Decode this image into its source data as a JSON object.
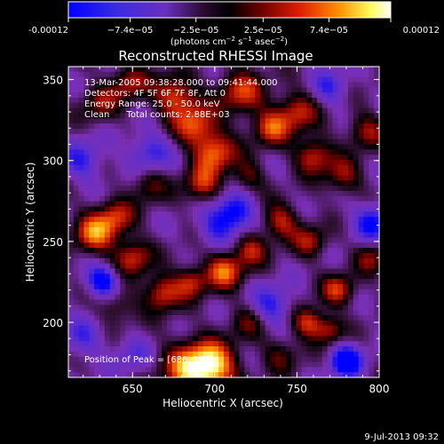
{
  "colorbar": {
    "tick_labels": [
      "-0.00012",
      "−7.4e−05",
      "−2.5e−05",
      "2.5e−05",
      "7.4e−05",
      "0.00012"
    ],
    "tick_values": [
      -0.00012,
      -7.4e-05,
      -2.5e-05,
      2.5e-05,
      7.4e-05,
      0.00012
    ],
    "range": [
      -0.00012,
      0.00012
    ],
    "unit_parts": [
      "(photons cm",
      "−2",
      " s",
      "−1",
      " asec",
      "−2",
      ")"
    ]
  },
  "footer": {
    "datestamp": "9-Jul-2013 09:32"
  },
  "chart_data": {
    "type": "heatmap",
    "title": "Reconstructed RHESSI Image",
    "xlabel": "Heliocentric X (arcsec)",
    "ylabel": "Heliocentric Y (arcsec)",
    "xlim": [
      611,
      800
    ],
    "ylim": [
      166,
      358
    ],
    "xticks": [
      650,
      700,
      750,
      800
    ],
    "yticks": [
      200,
      250,
      300,
      350
    ],
    "colormap": [
      "#0000ff",
      "#5a2fd0",
      "#7a2fb4",
      "#301030",
      "#000000",
      "#800000",
      "#e03000",
      "#ffa000",
      "#ffff80",
      "#ffffff"
    ],
    "annotations": [
      "13-Mar-2005 09:38:28.000 to 09:41:44.000",
      "Detectors: 4F 5F 6F 7F 8F, Att 0",
      "Energy Range: 25.0 - 50.0 keV",
      "Clean      Total counts: 2.88E+03",
      "Position of Peak = [686, 173]"
    ],
    "peak": {
      "x": 686,
      "y": 173
    },
    "blobs": [
      {
        "x": 686,
        "y": 171,
        "v": 1.0,
        "s": 12
      },
      {
        "x": 700,
        "y": 173,
        "v": 0.85,
        "s": 10
      },
      {
        "x": 676,
        "y": 340,
        "v": 0.8,
        "s": 9
      },
      {
        "x": 716,
        "y": 342,
        "v": 0.7,
        "s": 10
      },
      {
        "x": 688,
        "y": 322,
        "v": 0.75,
        "s": 9
      },
      {
        "x": 700,
        "y": 305,
        "v": 0.85,
        "s": 9
      },
      {
        "x": 692,
        "y": 285,
        "v": 0.65,
        "s": 8
      },
      {
        "x": 734,
        "y": 320,
        "v": 0.7,
        "s": 8
      },
      {
        "x": 750,
        "y": 330,
        "v": 0.65,
        "s": 9
      },
      {
        "x": 760,
        "y": 303,
        "v": 0.7,
        "s": 8
      },
      {
        "x": 778,
        "y": 290,
        "v": 0.55,
        "s": 8
      },
      {
        "x": 792,
        "y": 318,
        "v": 0.55,
        "s": 8
      },
      {
        "x": 648,
        "y": 348,
        "v": 0.6,
        "s": 8
      },
      {
        "x": 630,
        "y": 335,
        "v": 0.5,
        "s": 8
      },
      {
        "x": 627,
        "y": 255,
        "v": 0.85,
        "s": 9
      },
      {
        "x": 640,
        "y": 265,
        "v": 0.6,
        "s": 8
      },
      {
        "x": 650,
        "y": 240,
        "v": 0.7,
        "s": 8
      },
      {
        "x": 668,
        "y": 218,
        "v": 0.75,
        "s": 8
      },
      {
        "x": 686,
        "y": 225,
        "v": 0.65,
        "s": 7
      },
      {
        "x": 706,
        "y": 232,
        "v": 0.85,
        "s": 8
      },
      {
        "x": 722,
        "y": 245,
        "v": 0.6,
        "s": 7
      },
      {
        "x": 740,
        "y": 262,
        "v": 0.65,
        "s": 8
      },
      {
        "x": 758,
        "y": 250,
        "v": 0.55,
        "s": 7
      },
      {
        "x": 775,
        "y": 220,
        "v": 0.7,
        "s": 7
      },
      {
        "x": 795,
        "y": 240,
        "v": 0.5,
        "s": 7
      },
      {
        "x": 757,
        "y": 200,
        "v": 0.75,
        "s": 7
      },
      {
        "x": 770,
        "y": 195,
        "v": 0.55,
        "s": 6
      },
      {
        "x": 660,
        "y": 285,
        "v": 0.45,
        "s": 8
      },
      {
        "x": 720,
        "y": 290,
        "v": 0.45,
        "s": 7
      },
      {
        "x": 640,
        "y": 210,
        "v": 0.4,
        "s": 8
      },
      {
        "x": 720,
        "y": 200,
        "v": 0.4,
        "s": 8
      },
      {
        "x": 740,
        "y": 180,
        "v": 0.4,
        "s": 8
      },
      {
        "x": 632,
        "y": 225,
        "v": -0.85,
        "s": 7
      },
      {
        "x": 712,
        "y": 268,
        "v": -0.8,
        "s": 8
      },
      {
        "x": 780,
        "y": 176,
        "v": -0.9,
        "s": 7
      },
      {
        "x": 796,
        "y": 262,
        "v": -0.7,
        "s": 8
      },
      {
        "x": 660,
        "y": 305,
        "v": -0.55,
        "s": 9
      },
      {
        "x": 735,
        "y": 210,
        "v": -0.55,
        "s": 9
      },
      {
        "x": 620,
        "y": 300,
        "v": -0.5,
        "s": 9
      },
      {
        "x": 770,
        "y": 345,
        "v": -0.45,
        "s": 8
      },
      {
        "x": 700,
        "y": 258,
        "v": -0.45,
        "s": 8
      },
      {
        "x": 620,
        "y": 190,
        "v": -0.4,
        "s": 9
      },
      {
        "x": 650,
        "y": 180,
        "v": -0.35,
        "s": 8
      }
    ]
  }
}
